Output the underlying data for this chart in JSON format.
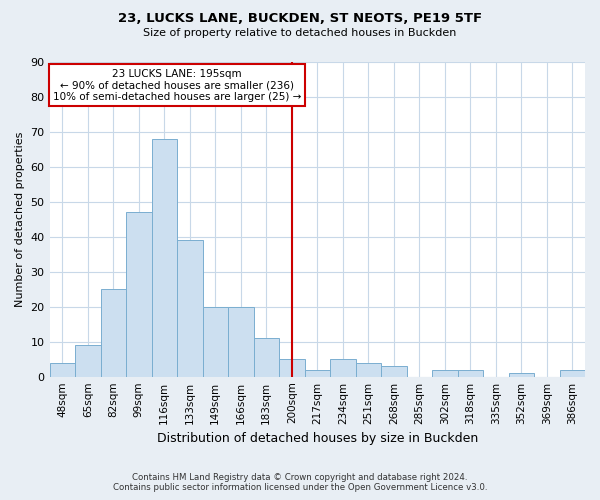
{
  "title": "23, LUCKS LANE, BUCKDEN, ST NEOTS, PE19 5TF",
  "subtitle": "Size of property relative to detached houses in Buckden",
  "xlabel": "Distribution of detached houses by size in Buckden",
  "ylabel": "Number of detached properties",
  "bar_color": "#ccdff0",
  "bar_edge_color": "#7aaed0",
  "bin_labels": [
    "48sqm",
    "65sqm",
    "82sqm",
    "99sqm",
    "116sqm",
    "133sqm",
    "149sqm",
    "166sqm",
    "183sqm",
    "200sqm",
    "217sqm",
    "234sqm",
    "251sqm",
    "268sqm",
    "285sqm",
    "302sqm",
    "318sqm",
    "335sqm",
    "352sqm",
    "369sqm",
    "386sqm"
  ],
  "bar_heights": [
    4,
    9,
    25,
    47,
    68,
    39,
    20,
    20,
    11,
    5,
    2,
    5,
    4,
    3,
    0,
    2,
    2,
    0,
    1,
    0,
    2
  ],
  "ylim": [
    0,
    90
  ],
  "yticks": [
    0,
    10,
    20,
    30,
    40,
    50,
    60,
    70,
    80,
    90
  ],
  "vline_x_index": 9,
  "vline_color": "#cc0000",
  "annotation_title": "23 LUCKS LANE: 195sqm",
  "annotation_line1": "← 90% of detached houses are smaller (236)",
  "annotation_line2": "10% of semi-detached houses are larger (25) →",
  "footer_line1": "Contains HM Land Registry data © Crown copyright and database right 2024.",
  "footer_line2": "Contains public sector information licensed under the Open Government Licence v3.0.",
  "background_color": "#e8eef4",
  "plot_background": "#ffffff",
  "grid_color": "#c8d8e8"
}
